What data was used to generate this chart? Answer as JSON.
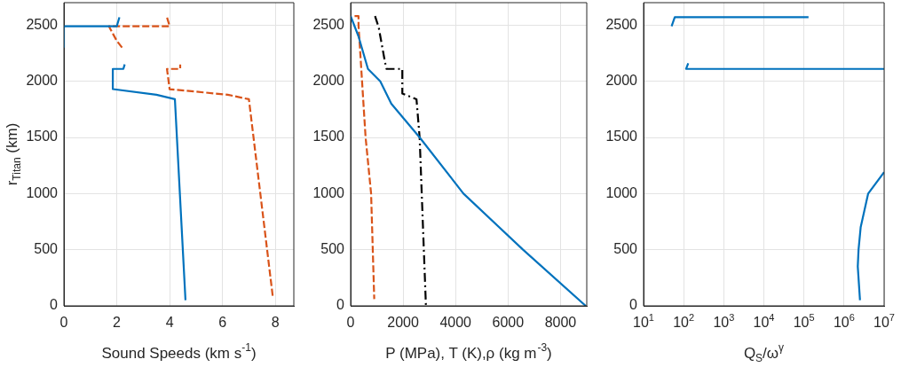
{
  "chart_data": [
    {
      "type": "line",
      "xlabel": "Sound Speeds (km s$^{-1}$)",
      "ylabel": "r$_{Titan}$ (km)",
      "xlim": [
        0,
        8.7
      ],
      "ylim": [
        0,
        2700
      ],
      "xticks": [
        0,
        2,
        4,
        6,
        8
      ],
      "yticks": [
        0,
        500,
        1000,
        1500,
        2000,
        2500
      ],
      "grid": true,
      "series": [
        {
          "color": "#0072bd",
          "line_style": "solid",
          "x": [
            4.6,
            4.2,
            3.5,
            1.85,
            1.85,
            2.25,
            2.3,
            null,
            0,
            0,
            2.0,
            2.1
          ],
          "values": [
            50,
            1840,
            1880,
            1930,
            2110,
            2110,
            2150,
            null,
            2300,
            2490,
            2490,
            2570
          ]
        },
        {
          "color": "#d95319",
          "line_style": "dashed",
          "x": [
            7.9,
            7.0,
            6.2,
            4.0,
            3.9,
            4.4,
            4.4,
            null,
            2.2,
            2.0,
            1.7,
            4.0,
            3.9
          ],
          "values": [
            90,
            1840,
            1880,
            1930,
            2110,
            2110,
            2150,
            null,
            2300,
            2360,
            2490,
            2490,
            2570
          ]
        }
      ]
    },
    {
      "type": "line",
      "xlabel": "P (MPa), T (K),ρ (kg m$^{-3}$)",
      "xlim": [
        0,
        9000
      ],
      "ylim": [
        0,
        2700
      ],
      "xticks": [
        0,
        2000,
        4000,
        6000,
        8000
      ],
      "yticks": [
        0,
        500,
        1000,
        1500,
        2000,
        2500
      ],
      "grid": true,
      "series": [
        {
          "color": "#0072bd",
          "line_style": "solid",
          "x": [
            0,
            300,
            660,
            1130,
            1550,
            2630,
            4300,
            6570,
            8960
          ],
          "values": [
            2580,
            2400,
            2110,
            2000,
            1800,
            1500,
            1000,
            500,
            0
          ]
        },
        {
          "color": "#d95319",
          "line_style": "dashed",
          "x": [
            150,
            300,
            300,
            570,
            780,
            900
          ],
          "values": [
            2580,
            2580,
            2500,
            1500,
            1000,
            60
          ]
        },
        {
          "color": "#000000",
          "line_style": "dashdot",
          "x": [
            930,
            1070,
            1310,
            1370,
            1970,
            1970,
            2510,
            2630,
            2870
          ],
          "values": [
            2580,
            2480,
            2170,
            2110,
            2110,
            1890,
            1840,
            1500,
            0
          ]
        }
      ]
    },
    {
      "type": "line",
      "xlabel": "Q$_{S}$/ω$^{γ}$",
      "log": "x",
      "xlim": [
        10,
        10000000
      ],
      "ylim": [
        0,
        2700
      ],
      "xticks": [
        {
          "value": 10,
          "label": "10$^{1}$"
        },
        {
          "value": 100,
          "label": "10$^{2}$"
        },
        {
          "value": 1000,
          "label": "10$^{3}$"
        },
        {
          "value": 10000,
          "label": "10$^{4}$"
        },
        {
          "value": 100000,
          "label": "10$^{5}$"
        },
        {
          "value": 1000000,
          "label": "10$^{6}$"
        },
        {
          "value": 10000000,
          "label": "10$^{7}$"
        }
      ],
      "yticks": [
        0,
        500,
        1000,
        1500,
        2000,
        2500
      ],
      "grid": true,
      "series": [
        {
          "color": "#0072bd",
          "line_style": "solid",
          "x": [
            50,
            60,
            130000,
            null,
            130,
            115,
            10000000,
            null,
            2500000,
            2200000,
            2300000,
            2600000,
            4000000,
            10000000
          ],
          "values": [
            2490,
            2570,
            2570,
            null,
            2160,
            2110,
            2110,
            null,
            50,
            350,
            500,
            700,
            1000,
            1190
          ]
        }
      ]
    }
  ]
}
